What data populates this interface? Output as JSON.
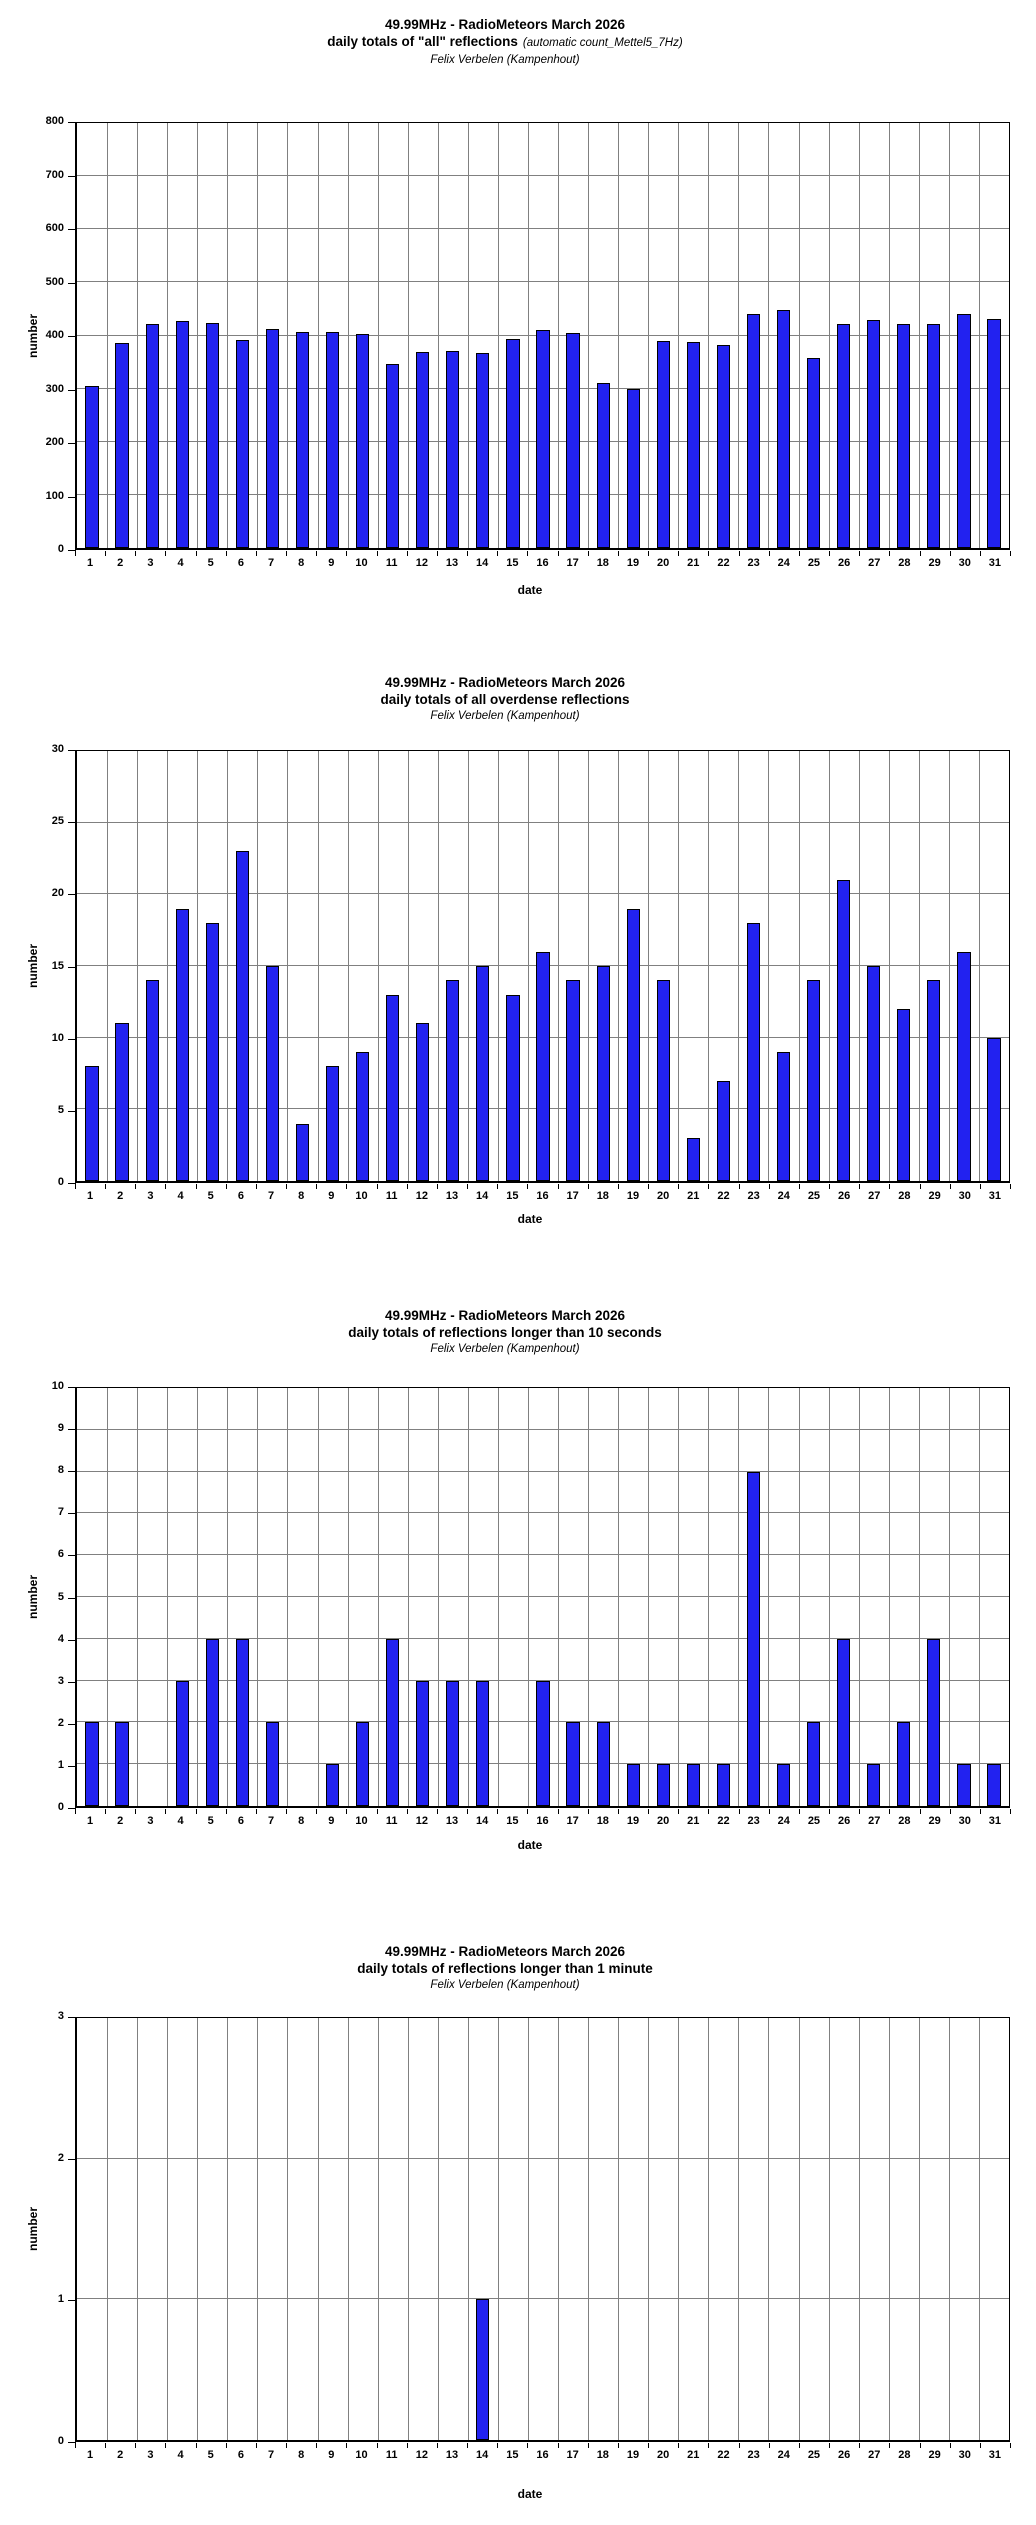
{
  "style": {
    "background": "#FFFFFF",
    "bar_fill": "#2222F0",
    "bar_border": "#000000",
    "grid_color": "#808080",
    "axis_color": "#000000",
    "text_color": "#000000"
  },
  "chart_data": [
    {
      "type": "bar",
      "title": "49.99MHz - RadioMeteors March 2026",
      "subtitle": "daily totals of \"all\" reflections",
      "subtitle_note": "(automatic count_Mettel5_7Hz)",
      "byline": "Felix Verbelen (Kampenhout)",
      "ylabel": "number",
      "xlabel": "date",
      "ylim": [
        0,
        800
      ],
      "ytick": 100,
      "grid": true,
      "legend": "none",
      "categories": [
        1,
        2,
        3,
        4,
        5,
        6,
        7,
        8,
        9,
        10,
        11,
        12,
        13,
        14,
        15,
        16,
        17,
        18,
        19,
        20,
        21,
        22,
        23,
        24,
        25,
        26,
        27,
        28,
        29,
        30,
        31
      ],
      "values": [
        305,
        385,
        421,
        428,
        423,
        391,
        413,
        406,
        406,
        402,
        347,
        369,
        371,
        367,
        394,
        411,
        404,
        311,
        299,
        389,
        387,
        383,
        440,
        448,
        358,
        421,
        429,
        421,
        421,
        440,
        432
      ]
    },
    {
      "type": "bar",
      "title": "49.99MHz - RadioMeteors March 2026",
      "subtitle": "daily totals of all overdense reflections",
      "byline": "Felix Verbelen (Kampenhout)",
      "ylabel": "number",
      "xlabel": "date",
      "ylim": [
        0,
        30
      ],
      "ytick": 5,
      "grid": true,
      "legend": "none",
      "categories": [
        1,
        2,
        3,
        4,
        5,
        6,
        7,
        8,
        9,
        10,
        11,
        12,
        13,
        14,
        15,
        16,
        17,
        18,
        19,
        20,
        21,
        22,
        23,
        24,
        25,
        26,
        27,
        28,
        29,
        30,
        31
      ],
      "values": [
        8,
        11,
        14,
        19,
        18,
        23,
        15,
        4,
        8,
        9,
        13,
        11,
        14,
        15,
        13,
        16,
        14,
        15,
        19,
        14,
        3,
        7,
        18,
        9,
        14,
        21,
        15,
        12,
        14,
        16,
        10
      ]
    },
    {
      "type": "bar",
      "title": "49.99MHz - RadioMeteors March 2026",
      "subtitle": "daily totals of reflections longer than 10 seconds",
      "byline": "Felix Verbelen (Kampenhout)",
      "ylabel": "number",
      "xlabel": "date",
      "ylim": [
        0,
        10
      ],
      "ytick": 1,
      "grid": true,
      "legend": "none",
      "categories": [
        1,
        2,
        3,
        4,
        5,
        6,
        7,
        8,
        9,
        10,
        11,
        12,
        13,
        14,
        15,
        16,
        17,
        18,
        19,
        20,
        21,
        22,
        23,
        24,
        25,
        26,
        27,
        28,
        29,
        30,
        31
      ],
      "values": [
        2,
        2,
        0,
        3,
        4,
        4,
        2,
        0,
        1,
        2,
        4,
        3,
        3,
        3,
        0,
        3,
        2,
        2,
        1,
        1,
        1,
        1,
        8,
        1,
        2,
        4,
        1,
        2,
        4,
        1,
        1
      ]
    },
    {
      "type": "bar",
      "title": "49.99MHz - RadioMeteors March 2026",
      "subtitle": "daily totals of reflections longer than 1 minute",
      "byline": "Felix Verbelen (Kampenhout)",
      "ylabel": "number",
      "xlabel": "date",
      "ylim": [
        0,
        3
      ],
      "ytick": 1,
      "grid": true,
      "legend": "none",
      "categories": [
        1,
        2,
        3,
        4,
        5,
        6,
        7,
        8,
        9,
        10,
        11,
        12,
        13,
        14,
        15,
        16,
        17,
        18,
        19,
        20,
        21,
        22,
        23,
        24,
        25,
        26,
        27,
        28,
        29,
        30,
        31
      ],
      "values": [
        0,
        0,
        0,
        0,
        0,
        0,
        0,
        0,
        0,
        0,
        0,
        0,
        0,
        1,
        0,
        0,
        0,
        0,
        0,
        0,
        0,
        0,
        0,
        0,
        0,
        0,
        0,
        0,
        0,
        0,
        0
      ]
    }
  ]
}
